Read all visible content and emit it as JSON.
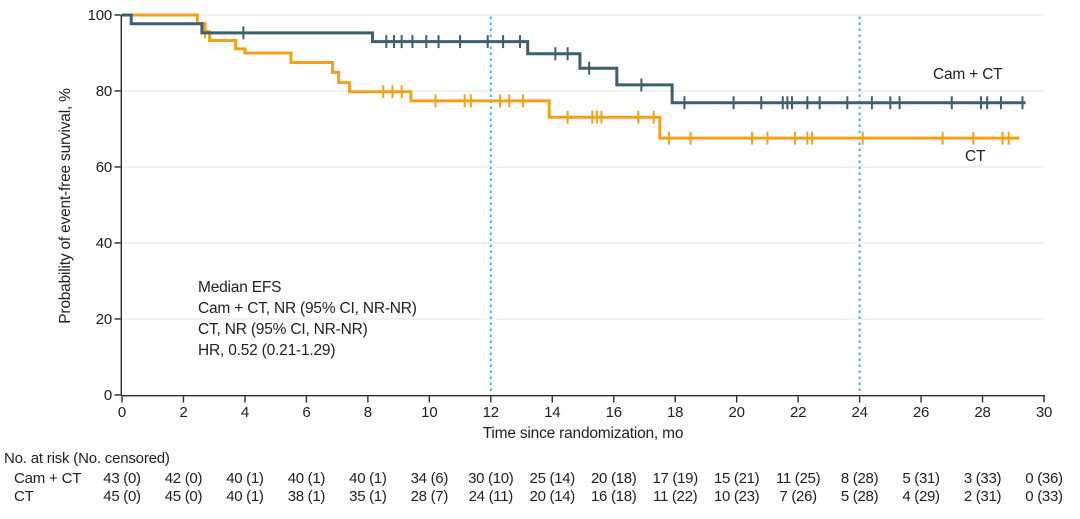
{
  "chart_data": {
    "type": "line",
    "subtype": "kaplan-meier-step",
    "title": "",
    "xlabel": "Time since randomization, mo",
    "ylabel": "Probability of event-free survival, %",
    "xlim": [
      0,
      30
    ],
    "ylim": [
      0,
      100
    ],
    "xticks": [
      0,
      2,
      4,
      6,
      8,
      10,
      12,
      14,
      16,
      18,
      20,
      22,
      24,
      26,
      28,
      30
    ],
    "yticks": [
      0,
      20,
      40,
      60,
      80,
      100
    ],
    "grid": "horizontal",
    "reference_lines_x": [
      12,
      24
    ],
    "series": [
      {
        "name": "CT",
        "color": "#F2A11C",
        "steps": [
          [
            0,
            100
          ],
          [
            2.45,
            97.8
          ],
          [
            2.7,
            95.6
          ],
          [
            2.85,
            93.3
          ],
          [
            3.7,
            91.1
          ],
          [
            4.0,
            90.0
          ],
          [
            5.5,
            87.5
          ],
          [
            6.85,
            84.9
          ],
          [
            7.05,
            82.2
          ],
          [
            7.4,
            79.8
          ],
          [
            9.4,
            77.4
          ],
          [
            13.9,
            73.1
          ],
          [
            17.5,
            67.6
          ]
        ],
        "end_time": 29.2,
        "censor_times": [
          2.7,
          8.5,
          8.8,
          9.1,
          10.2,
          11.15,
          11.35,
          12.3,
          12.6,
          13.05,
          14.5,
          15.3,
          15.45,
          15.6,
          16.8,
          17.3,
          17.8,
          18.5,
          20.5,
          21.0,
          21.9,
          22.3,
          22.45,
          24.1,
          26.7,
          27.7,
          28.65,
          28.85
        ]
      },
      {
        "name": "Cam + CT",
        "color": "#3F5F70",
        "steps": [
          [
            0,
            100
          ],
          [
            0.3,
            97.7
          ],
          [
            2.6,
            95.3
          ],
          [
            8.15,
            93.0
          ],
          [
            13.2,
            89.8
          ],
          [
            14.9,
            86.0
          ],
          [
            16.1,
            81.6
          ],
          [
            17.9,
            76.9
          ]
        ],
        "end_time": 29.4,
        "censor_times": [
          3.95,
          8.6,
          8.85,
          9.1,
          9.45,
          9.9,
          10.3,
          11.0,
          11.9,
          12.4,
          12.95,
          14.1,
          14.5,
          15.2,
          16.9,
          18.3,
          19.9,
          20.8,
          21.5,
          21.65,
          21.8,
          22.3,
          22.7,
          23.6,
          24.4,
          25.0,
          25.3,
          27.0,
          27.95,
          28.15,
          28.6,
          29.3
        ]
      }
    ],
    "curve_labels": {
      "camct": "Cam + CT",
      "ct": "CT"
    },
    "annotation": {
      "line1": "Median EFS",
      "line2": "Cam + CT, NR (95% CI, NR-NR)",
      "line3": "CT, NR (95% CI, NR-NR)",
      "line4": "HR, 0.52 (0.21-1.29)"
    },
    "colors": {
      "camct_line": "#3F5F70",
      "ct_line": "#F2A11C",
      "reference_line": "#41B6E8",
      "gridline": "#EAEAEA",
      "axis": "#2B2B2B",
      "text": "#212121"
    }
  },
  "risk_table": {
    "header": "No. at risk (No. censored)",
    "rows": [
      {
        "label": "Cam + CT",
        "values": [
          "43 (0)",
          "42 (0)",
          "40 (1)",
          "40 (1)",
          "40 (1)",
          "34 (6)",
          "30 (10)",
          "25 (14)",
          "20 (18)",
          "17 (19)",
          "15 (21)",
          "11 (25)",
          "8 (28)",
          "5 (31)",
          "3 (33)",
          "0 (36)"
        ]
      },
      {
        "label": "CT",
        "values": [
          "45 (0)",
          "45 (0)",
          "40 (1)",
          "38 (1)",
          "35 (1)",
          "28 (7)",
          "24 (11)",
          "20 (14)",
          "16 (18)",
          "11 (22)",
          "10 (23)",
          "7 (26)",
          "5 (28)",
          "4 (29)",
          "2 (31)",
          "0 (33)"
        ]
      }
    ]
  }
}
